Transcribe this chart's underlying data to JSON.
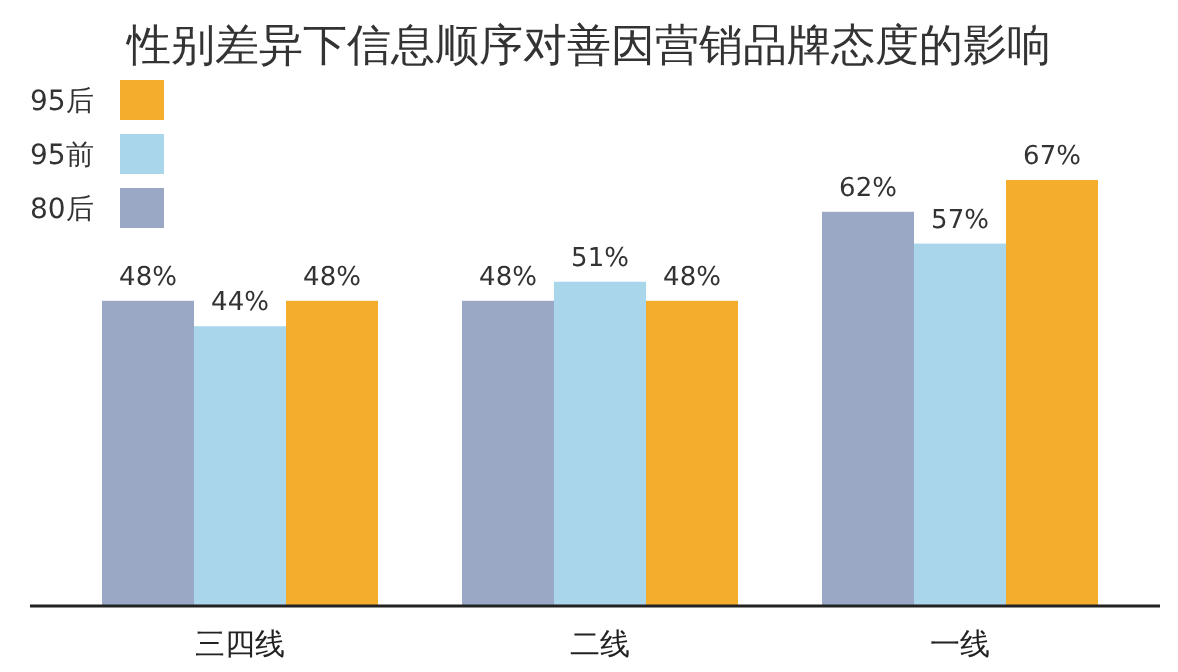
{
  "chart_data": {
    "type": "bar",
    "title": "性别差异下信息顺序对善因营销品牌态度的影响",
    "categories": [
      "三四线",
      "二线",
      "一线"
    ],
    "legend": "top left",
    "series": [
      {
        "name": "80后",
        "color": "#9aa8c6",
        "values": [
          48,
          48,
          62
        ],
        "value_labels": [
          "48%",
          "48%",
          "62%"
        ]
      },
      {
        "name": "95前",
        "color": "#a9d6ea",
        "values": [
          44,
          51,
          57
        ],
        "value_labels": [
          "44%",
          "51%",
          "57%"
        ]
      },
      {
        "name": "95后",
        "color": "#f5ad2c",
        "values": [
          48,
          48,
          67
        ],
        "value_labels": [
          "48%",
          "48%",
          "67%"
        ]
      }
    ]
  }
}
